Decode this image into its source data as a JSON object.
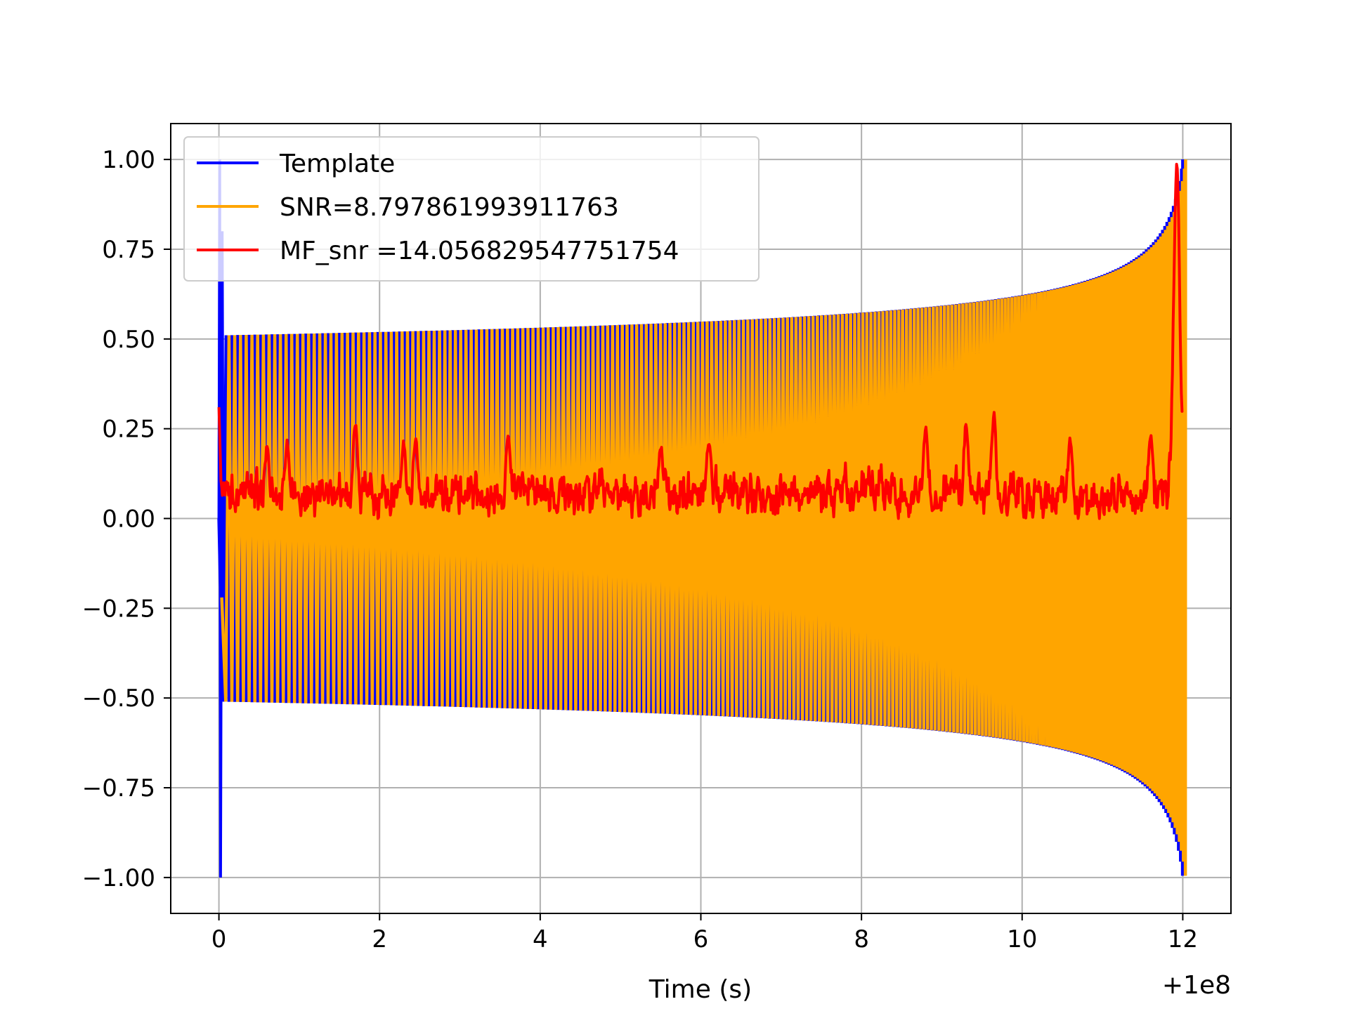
{
  "chart_data": {
    "type": "line",
    "title": "",
    "xlabel": "Time (s)",
    "ylabel": "",
    "x_offset_label": "+1e8",
    "xlim": [
      -0.6,
      12.6
    ],
    "ylim": [
      -1.1,
      1.1
    ],
    "xticks": [
      0,
      2,
      4,
      6,
      8,
      10,
      12
    ],
    "xtick_labels": [
      "0",
      "2",
      "4",
      "6",
      "8",
      "10",
      "12"
    ],
    "yticks": [
      -1.0,
      -0.75,
      -0.5,
      -0.25,
      0.0,
      0.25,
      0.5,
      0.75,
      1.0
    ],
    "ytick_labels": [
      "−1.00",
      "−0.75",
      "−0.50",
      "−0.25",
      "0.00",
      "0.25",
      "0.50",
      "0.75",
      "1.00"
    ],
    "grid": true,
    "legend_position": "upper-left",
    "series": [
      {
        "name": "Template",
        "color": "#0000ff",
        "kind": "chirp",
        "t_start": 0.0,
        "t_end": 12.0,
        "envelope_start": 0.51,
        "envelope_end": 1.0,
        "spike_at": 0.0,
        "spike_min": -1.0,
        "spike_max": 1.0,
        "end_value": 0.8
      },
      {
        "name": "SNR=8.797861993911763",
        "color": "#ffa500",
        "kind": "chirp",
        "t_start": 0.0,
        "t_end": 12.0,
        "start_value": -0.22,
        "envelope_start": 0.51,
        "envelope_end": 1.0,
        "end_value": 0.8
      },
      {
        "name": "MF_snr =14.056829547751754",
        "color": "#ff0000",
        "kind": "noise-trace",
        "t_start": 0.0,
        "t_end": 12.0,
        "start_value": 0.31,
        "baseline": 0.07,
        "range": [
          0.0,
          0.29
        ],
        "peaks": [
          {
            "t": 0.6,
            "y": 0.2
          },
          {
            "t": 0.85,
            "y": 0.21
          },
          {
            "t": 1.7,
            "y": 0.26
          },
          {
            "t": 2.3,
            "y": 0.21
          },
          {
            "t": 2.45,
            "y": 0.22
          },
          {
            "t": 3.6,
            "y": 0.23
          },
          {
            "t": 5.5,
            "y": 0.2
          },
          {
            "t": 6.1,
            "y": 0.21
          },
          {
            "t": 8.8,
            "y": 0.25
          },
          {
            "t": 9.3,
            "y": 0.26
          },
          {
            "t": 9.65,
            "y": 0.29
          },
          {
            "t": 10.6,
            "y": 0.22
          },
          {
            "t": 11.6,
            "y": 0.23
          },
          {
            "t": 11.93,
            "y": 1.0
          },
          {
            "t": 12.0,
            "y": 0.3
          }
        ]
      }
    ]
  }
}
